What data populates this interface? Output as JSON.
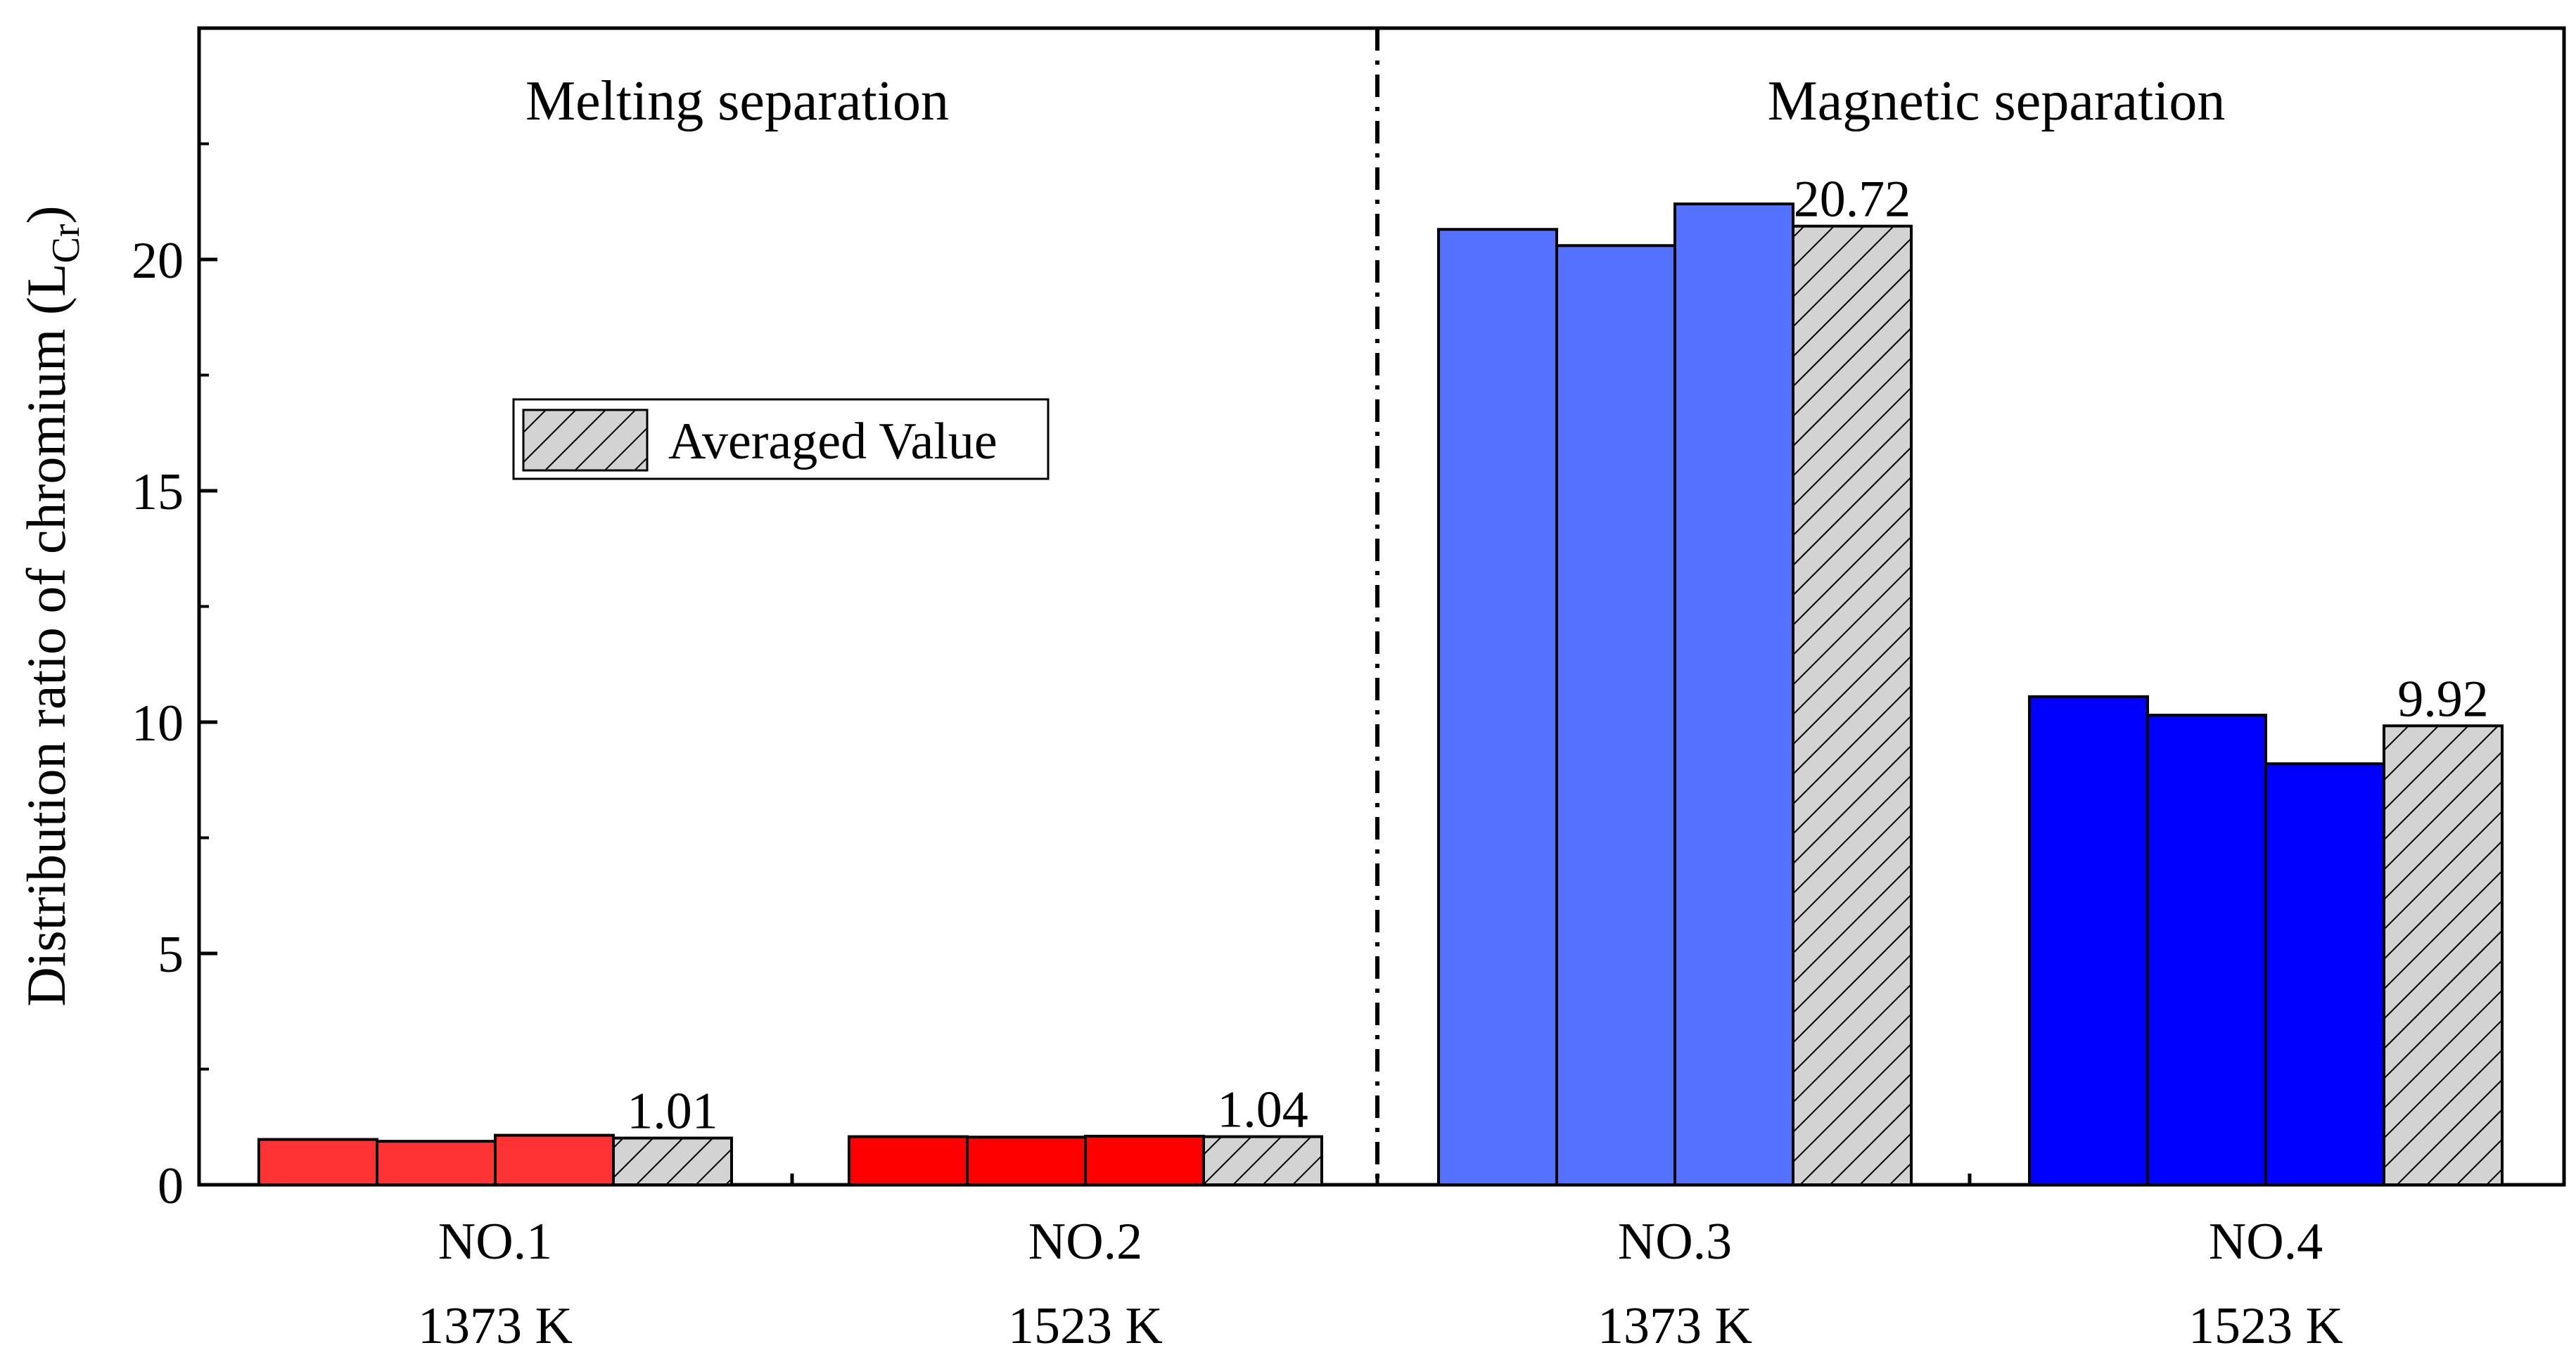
{
  "chart_data": {
    "type": "bar",
    "ylabel": "Distribution ratio of chromium (L",
    "ylabel_subscript": "Cr",
    "ylabel_close": ")",
    "ylim": [
      0,
      25
    ],
    "yticks": [
      0,
      5,
      10,
      15,
      20
    ],
    "ytick_labels": [
      "0",
      "5",
      "10",
      "15",
      "20"
    ],
    "sections": [
      {
        "title": "Melting separation"
      },
      {
        "title": "Magnetic separation"
      }
    ],
    "legend": {
      "label": "Averaged Value",
      "position": "left-middle"
    },
    "groups": [
      {
        "label": "NO.1",
        "temperature": "1373 K",
        "color": "#ff3333",
        "values": [
          0.98,
          0.94,
          1.07
        ],
        "average": 1.01,
        "average_label": "1.01"
      },
      {
        "label": "NO.2",
        "temperature": "1523 K",
        "color": "#ff0000",
        "values": [
          1.04,
          1.03,
          1.05
        ],
        "average": 1.04,
        "average_label": "1.04"
      },
      {
        "label": "NO.3",
        "temperature": "1373 K",
        "color": "#5472ff",
        "values": [
          20.65,
          20.3,
          21.2
        ],
        "average": 20.72,
        "average_label": "20.72"
      },
      {
        "label": "NO.4",
        "temperature": "1523 K",
        "color": "#0000ff",
        "values": [
          10.55,
          10.15,
          9.1
        ],
        "average": 9.92,
        "average_label": "9.92"
      }
    ],
    "average_fill": "#d3d3d3"
  }
}
